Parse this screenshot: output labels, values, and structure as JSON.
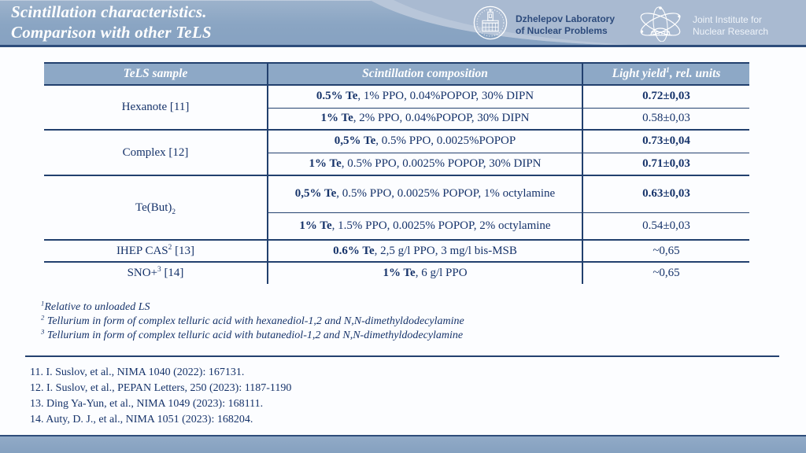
{
  "header": {
    "title_lines": [
      "Scintillation characteristics.",
      "Comparison with other TeLS"
    ],
    "logos": {
      "dlnp": {
        "icon": "building-seal-icon",
        "lines": [
          "Dzhelepov Laboratory",
          "of Nuclear Problems"
        ]
      },
      "jinr": {
        "icon": "atom-orbits-icon",
        "lines": [
          "Joint Institute for",
          "Nuclear Research"
        ]
      }
    }
  },
  "colors": {
    "band_blue": "#8aa5c3",
    "band_light_blue": "#a9bad1",
    "navy_text": "#16336a",
    "table_border_navy": "#22406e",
    "header_row_bg": "#8da8c6",
    "rule_navy": "#2e4d7b"
  },
  "table": {
    "columns": [
      {
        "segments": [
          {
            "t": "TeLS sample"
          }
        ]
      },
      {
        "segments": [
          {
            "t": "Scintillation composition"
          }
        ]
      },
      {
        "segments": [
          {
            "t": "Light yield"
          },
          {
            "sup": "1"
          },
          {
            "t": ", rel. units"
          }
        ]
      }
    ],
    "groups": [
      {
        "sample": [
          {
            "t": "Hexanote [11]"
          }
        ],
        "align": "top",
        "rows": [
          {
            "comp": [
              {
                "b": "0.5% Te"
              },
              {
                "t": ", 1% PPO, 0.04%POPOP, 30% DIPN"
              }
            ],
            "yield": "0.72±0,03",
            "yield_bold": true
          },
          {
            "comp": [
              {
                "b": "1% Te"
              },
              {
                "t": ", 2% PPO, 0.04%POPOP, 30% DIPN"
              }
            ],
            "yield": "0.58±0,03",
            "yield_bold": false
          }
        ]
      },
      {
        "sample": [
          {
            "t": "Complex [12]"
          }
        ],
        "align": "top",
        "rows": [
          {
            "comp": [
              {
                "b": "0,5% Te"
              },
              {
                "t": ", 0.5% PPO, 0.0025%POPOP"
              }
            ],
            "yield": "0.73±0,04",
            "yield_bold": true
          },
          {
            "comp": [
              {
                "b": "1% Te"
              },
              {
                "t": ", 0.5% PPO, 0.0025% POPOP, 30% DIPN"
              }
            ],
            "yield": "0.71±0,03",
            "yield_bold": true
          }
        ]
      },
      {
        "sample": [
          {
            "t": "Te(But)"
          },
          {
            "sub": "2"
          }
        ],
        "align": "middle",
        "rows": [
          {
            "comp": [
              {
                "b": "0,5% Te"
              },
              {
                "t": ", 0.5% PPO, 0.0025% POPOP, 1% octylamine"
              }
            ],
            "yield": "0.63±0,03",
            "yield_bold": true
          },
          {
            "comp": [
              {
                "b": "1% Te"
              },
              {
                "t": ", 1.5% PPO, 0.0025% POPOP, 2% octylamine"
              }
            ],
            "yield": "0.54±0,03",
            "yield_bold": false
          }
        ]
      },
      {
        "sample": [
          {
            "t": "IHEP CAS"
          },
          {
            "sup": "2"
          },
          {
            "t": " [13]"
          }
        ],
        "align": "middle",
        "rows": [
          {
            "comp": [
              {
                "b": "0.6% Te"
              },
              {
                "t": ", 2,5 g/l PPO, 3 mg/l bis-MSB"
              }
            ],
            "yield": "~0,65",
            "yield_bold": false
          }
        ]
      },
      {
        "sample": [
          {
            "t": "SNO+"
          },
          {
            "sup": "3"
          },
          {
            "t": " [14]"
          }
        ],
        "align": "middle",
        "rows": [
          {
            "comp": [
              {
                "b": "1% Te"
              },
              {
                "t": ", 6 g/l PPO"
              }
            ],
            "yield": "~0,65",
            "yield_bold": false
          }
        ]
      }
    ]
  },
  "footnotes": [
    [
      {
        "sup": "1"
      },
      {
        "t": "Relative to unloaded LS"
      }
    ],
    [
      {
        "sup": "2"
      },
      {
        "t": " Tellurium in form of complex telluric acid with hexanediol-1,2 and N,N-dimethyldodecylamine"
      }
    ],
    [
      {
        "sup": "3"
      },
      {
        "t": " Tellurium in form of complex telluric acid with butanediol-1,2 and N,N-dimethyldodecylamine"
      }
    ]
  ],
  "references": [
    "11. I. Suslov, et al., NIMA 1040 (2022): 167131.",
    "12. I. Suslov, et al., PEPAN Letters, 250 (2023): 1187-1190",
    "13. Ding Ya-Yun, et al., NIMA 1049 (2023): 168111.",
    "14. Auty, D. J., et al., NIMA 1051 (2023): 168204."
  ]
}
